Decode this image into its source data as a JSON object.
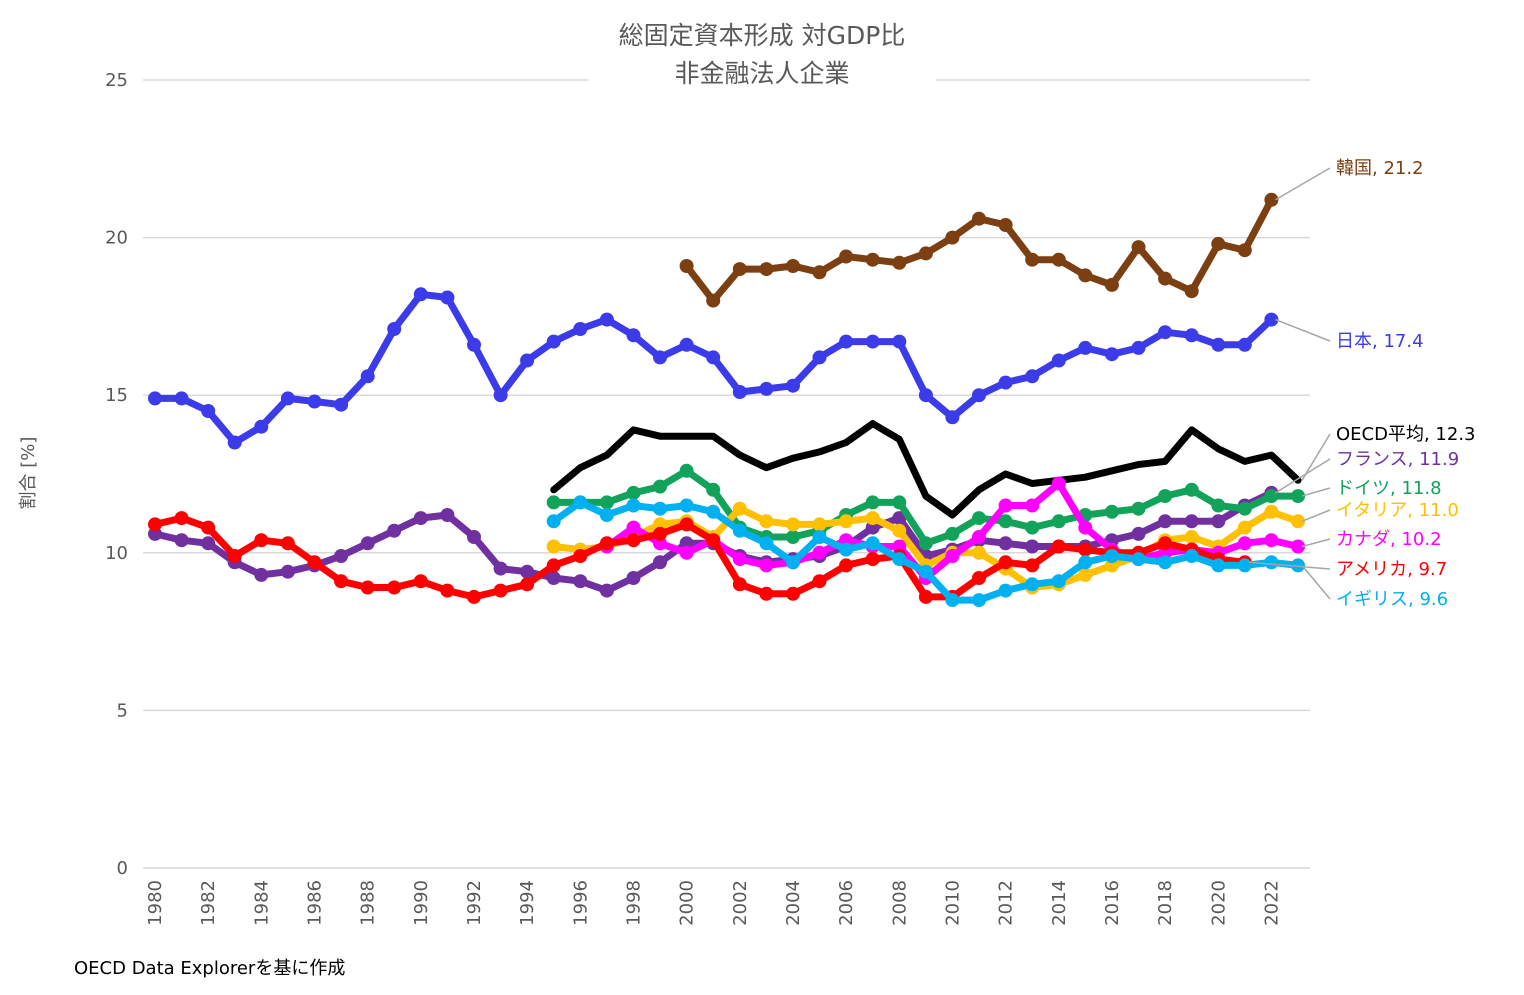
{
  "chart_data": {
    "type": "line",
    "title": [
      "総固定資本形成 対GDP比",
      "非金融法人企業"
    ],
    "ylabel": "割合 [%]",
    "xlabel": "",
    "source": "OECD Data Explorerを基に作成",
    "ylim": [
      0,
      25
    ],
    "yticks": [
      0,
      5,
      10,
      15,
      20,
      25
    ],
    "xlim": [
      1980,
      2023
    ],
    "xticks": [
      "1980",
      "1982",
      "1984",
      "1986",
      "1988",
      "1990",
      "1992",
      "1994",
      "1996",
      "1998",
      "2000",
      "2002",
      "2004",
      "2006",
      "2008",
      "2010",
      "2012",
      "2014",
      "2016",
      "2018",
      "2020",
      "2022"
    ],
    "grid": "horizontal",
    "series": [
      {
        "name": "韓国",
        "end_label": "韓国, 21.2",
        "color": "#7B3F12",
        "markers": true,
        "start": 2000,
        "values": [
          19.1,
          18.0,
          19.0,
          19.0,
          19.1,
          18.9,
          19.4,
          19.3,
          19.2,
          19.5,
          20.0,
          20.6,
          20.4,
          19.3,
          19.3,
          18.8,
          18.5,
          19.7,
          18.7,
          18.3,
          19.8,
          19.6,
          21.2
        ]
      },
      {
        "name": "日本",
        "end_label": "日本, 17.4",
        "color": "#3B3BEA",
        "markers": true,
        "start": 1980,
        "values": [
          14.9,
          14.9,
          14.5,
          13.5,
          14.0,
          14.9,
          14.8,
          14.7,
          15.6,
          17.1,
          18.2,
          18.1,
          16.6,
          15.0,
          16.1,
          16.7,
          17.1,
          17.4,
          16.9,
          16.2,
          16.6,
          16.2,
          15.1,
          15.2,
          15.3,
          16.2,
          16.7,
          16.7,
          16.7,
          15.0,
          14.3,
          15.0,
          15.4,
          15.6,
          16.1,
          16.5,
          16.3,
          16.5,
          17.0,
          16.9,
          16.6,
          16.6,
          17.4
        ]
      },
      {
        "name": "OECD平均",
        "end_label": "OECD平均, 12.3",
        "color": "#000000",
        "markers": false,
        "start": 1995,
        "values": [
          12.0,
          12.7,
          13.1,
          13.9,
          13.7,
          13.7,
          13.7,
          13.1,
          12.7,
          13.0,
          13.2,
          13.5,
          14.1,
          13.6,
          11.8,
          11.2,
          12.0,
          12.5,
          12.2,
          12.3,
          12.4,
          12.6,
          12.8,
          12.9,
          13.9,
          13.3,
          12.9,
          13.1,
          12.3
        ]
      },
      {
        "name": "フランス",
        "end_label": "フランス, 11.9",
        "color": "#7030A0",
        "markers": true,
        "start": 1980,
        "values": [
          10.6,
          10.4,
          10.3,
          9.7,
          9.3,
          9.4,
          9.6,
          9.9,
          10.3,
          10.7,
          11.1,
          11.2,
          10.5,
          9.5,
          9.4,
          9.2,
          9.1,
          8.8,
          9.2,
          9.7,
          10.3,
          10.3,
          9.9,
          9.7,
          9.8,
          9.9,
          10.2,
          10.8,
          11.1,
          9.9,
          10.1,
          10.4,
          10.3,
          10.2,
          10.2,
          10.2,
          10.4,
          10.6,
          11.0,
          11.0,
          11.0,
          11.5,
          11.9
        ]
      },
      {
        "name": "ドイツ",
        "end_label": "ドイツ, 11.8",
        "color": "#12A35A",
        "markers": true,
        "start": 1995,
        "values": [
          11.6,
          11.6,
          11.6,
          11.9,
          12.1,
          12.6,
          12.0,
          10.8,
          10.5,
          10.5,
          10.7,
          11.2,
          11.6,
          11.6,
          10.3,
          10.6,
          11.1,
          11.0,
          10.8,
          11.0,
          11.2,
          11.3,
          11.4,
          11.8,
          12.0,
          11.5,
          11.4,
          11.8,
          11.8
        ]
      },
      {
        "name": "イタリア",
        "end_label": "イタリア, 11.0",
        "color": "#FFC000",
        "markers": true,
        "start": 1995,
        "values": [
          10.2,
          10.1,
          10.2,
          10.5,
          10.9,
          11.0,
          10.5,
          11.4,
          11.0,
          10.9,
          10.9,
          11.0,
          11.1,
          10.7,
          9.6,
          10.0,
          10.0,
          9.5,
          8.9,
          9.0,
          9.3,
          9.6,
          9.9,
          10.4,
          10.5,
          10.2,
          10.8,
          11.3,
          11.0
        ]
      },
      {
        "name": "カナダ",
        "end_label": "カナダ, 10.2",
        "color": "#FF00FF",
        "markers": true,
        "start": 1997,
        "values": [
          10.2,
          10.8,
          10.3,
          10.0,
          10.4,
          9.8,
          9.6,
          9.7,
          10.0,
          10.4,
          10.2,
          10.2,
          9.2,
          9.9,
          10.5,
          11.5,
          11.5,
          12.2,
          10.8,
          10.1,
          9.8,
          10.0,
          10.1,
          10.0,
          10.3,
          10.4,
          10.2
        ]
      },
      {
        "name": "アメリカ",
        "end_label": "アメリカ, 9.7",
        "color": "#FF0000",
        "markers": true,
        "start": 1980,
        "values": [
          10.9,
          11.1,
          10.8,
          9.9,
          10.4,
          10.3,
          9.7,
          9.1,
          8.9,
          8.9,
          9.1,
          8.8,
          8.6,
          8.8,
          9.0,
          9.6,
          9.9,
          10.3,
          10.4,
          10.6,
          10.9,
          10.4,
          9.0,
          8.7,
          8.7,
          9.1,
          9.6,
          9.8,
          9.9,
          8.6,
          8.6,
          9.2,
          9.7,
          9.6,
          10.2,
          10.1,
          10.0,
          10.0,
          10.3,
          10.1,
          9.8,
          9.7
        ]
      },
      {
        "name": "イギリス",
        "end_label": "イギリス, 9.6",
        "color": "#00B0F0",
        "markers": true,
        "start": 1995,
        "values": [
          11.0,
          11.6,
          11.2,
          11.5,
          11.4,
          11.5,
          11.3,
          10.7,
          10.3,
          9.7,
          10.5,
          10.1,
          10.3,
          9.8,
          9.4,
          8.5,
          8.5,
          8.8,
          9.0,
          9.1,
          9.7,
          9.9,
          9.8,
          9.7,
          9.9,
          9.6,
          9.6,
          9.7,
          9.6
        ]
      }
    ]
  }
}
